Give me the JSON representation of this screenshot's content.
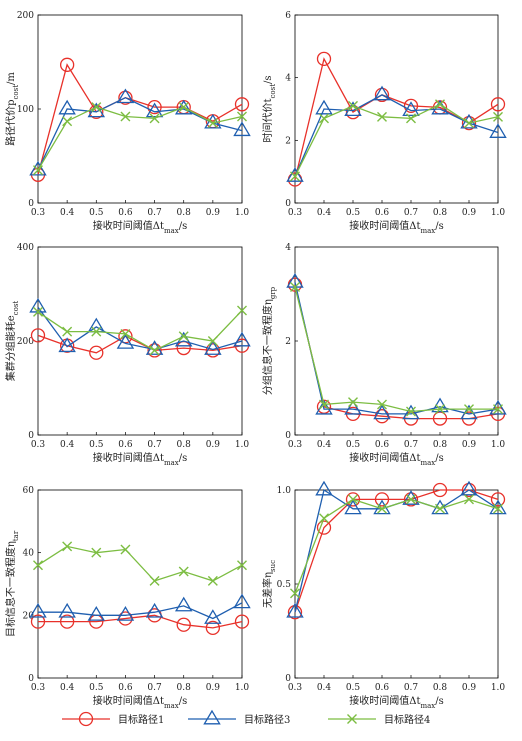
{
  "colors": {
    "s1": "#e8312a",
    "s3": "#1f5fb0",
    "s4": "#7cbd42"
  },
  "markers": {
    "s1": "circle",
    "s3": "triangle",
    "s4": "x"
  },
  "legend": [
    {
      "key": "s1",
      "label": "目标路径1"
    },
    {
      "key": "s3",
      "label": "目标路径3"
    },
    {
      "key": "s4",
      "label": "目标路径4"
    }
  ],
  "chart_data": [
    {
      "type": "line",
      "x": [
        0.3,
        0.4,
        0.5,
        0.6,
        0.7,
        0.8,
        0.9,
        1.0
      ],
      "xticks": [
        "0.3",
        "0.4",
        "0.5",
        "0.6",
        "0.7",
        "0.8",
        "0.9",
        "1.0"
      ],
      "ylim": [
        0,
        200
      ],
      "yticks": [
        "0",
        "100",
        "200"
      ],
      "ytick_vals": [
        0,
        100,
        200
      ],
      "xlabel": "接收时间阈值Δt_max/s",
      "ylabel": "路径代价p_cost/m",
      "series": [
        {
          "key": "s1",
          "name": "目标路径1",
          "values": [
            30,
            147,
            97,
            112,
            102,
            102,
            87,
            105
          ]
        },
        {
          "key": "s3",
          "name": "目标路径3",
          "values": [
            35,
            100,
            97,
            112,
            97,
            100,
            85,
            77
          ]
        },
        {
          "key": "s4",
          "name": "目标路径4",
          "values": [
            35,
            87,
            102,
            92,
            90,
            102,
            85,
            92
          ]
        }
      ]
    },
    {
      "type": "line",
      "x": [
        0.3,
        0.4,
        0.5,
        0.6,
        0.7,
        0.8,
        0.9,
        1.0
      ],
      "xticks": [
        "0.3",
        "0.4",
        "0.5",
        "0.6",
        "0.7",
        "0.8",
        "0.9",
        "1.0"
      ],
      "ylim": [
        0,
        6
      ],
      "yticks": [
        "0",
        "2",
        "4",
        "6"
      ],
      "ytick_vals": [
        0,
        2,
        4,
        6
      ],
      "xlabel": "接收时间阈值Δt_max/s",
      "ylabel": "时间代价t_cost/s",
      "series": [
        {
          "key": "s1",
          "name": "目标路径1",
          "values": [
            0.75,
            4.6,
            2.9,
            3.45,
            3.1,
            3.05,
            2.55,
            3.15
          ]
        },
        {
          "key": "s3",
          "name": "目标路径3",
          "values": [
            0.85,
            3.0,
            2.95,
            3.45,
            2.95,
            3.0,
            2.55,
            2.25
          ]
        },
        {
          "key": "s4",
          "name": "目标路径4",
          "values": [
            0.85,
            2.7,
            3.1,
            2.75,
            2.7,
            3.15,
            2.55,
            2.75
          ]
        }
      ]
    },
    {
      "type": "line",
      "x": [
        0.3,
        0.4,
        0.5,
        0.6,
        0.7,
        0.8,
        0.9,
        1.0
      ],
      "xticks": [
        "0.3",
        "0.4",
        "0.5",
        "0.6",
        "0.7",
        "0.8",
        "0.9",
        "1.0"
      ],
      "ylim": [
        0,
        400
      ],
      "yticks": [
        "0",
        "200",
        "400"
      ],
      "ytick_vals": [
        0,
        200,
        400
      ],
      "xlabel": "接收时间阈值Δt_max/s",
      "ylabel": "集群分组能耗e_cost",
      "series": [
        {
          "key": "s1",
          "name": "目标路径1",
          "values": [
            212,
            190,
            175,
            210,
            180,
            185,
            180,
            190
          ]
        },
        {
          "key": "s3",
          "name": "目标路径3",
          "values": [
            272,
            188,
            230,
            195,
            182,
            200,
            182,
            200
          ]
        },
        {
          "key": "s4",
          "name": "目标路径4",
          "values": [
            262,
            220,
            220,
            215,
            180,
            210,
            200,
            265
          ]
        }
      ]
    },
    {
      "type": "line",
      "x": [
        0.3,
        0.4,
        0.5,
        0.6,
        0.7,
        0.8,
        0.9,
        1.0
      ],
      "xticks": [
        "0.3",
        "0.4",
        "0.5",
        "0.6",
        "0.7",
        "0.8",
        "0.9",
        "1.0"
      ],
      "ylim": [
        0,
        4
      ],
      "yticks": [
        "0",
        "2",
        "4"
      ],
      "ytick_vals": [
        0,
        2,
        4
      ],
      "xlabel": "接收时间阈值Δt_max/s",
      "ylabel": "分组信息不一致程度η_grp",
      "series": [
        {
          "key": "s1",
          "name": "目标路径1",
          "values": [
            3.2,
            0.6,
            0.45,
            0.4,
            0.35,
            0.35,
            0.35,
            0.45
          ]
        },
        {
          "key": "s3",
          "name": "目标路径3",
          "values": [
            3.25,
            0.55,
            0.55,
            0.45,
            0.45,
            0.6,
            0.45,
            0.55
          ]
        },
        {
          "key": "s4",
          "name": "目标路径4",
          "values": [
            3.15,
            0.65,
            0.7,
            0.65,
            0.5,
            0.55,
            0.55,
            0.55
          ]
        }
      ]
    },
    {
      "type": "line",
      "x": [
        0.3,
        0.4,
        0.5,
        0.6,
        0.7,
        0.8,
        0.9,
        1.0
      ],
      "xticks": [
        "0.3",
        "0.4",
        "0.5",
        "0.6",
        "0.7",
        "0.8",
        "0.9",
        "1.0"
      ],
      "ylim": [
        0,
        60
      ],
      "yticks": [
        "0",
        "20",
        "40",
        "60"
      ],
      "ytick_vals": [
        0,
        20,
        40,
        60
      ],
      "xlabel": "接收时间阈值Δt_max/s",
      "ylabel": "目标信息不一致程度η_tar",
      "series": [
        {
          "key": "s1",
          "name": "目标路径1",
          "values": [
            18,
            18,
            18,
            19,
            20,
            17,
            16,
            18
          ]
        },
        {
          "key": "s3",
          "name": "目标路径3",
          "values": [
            21,
            21,
            20,
            20,
            21,
            23,
            19,
            24
          ]
        },
        {
          "key": "s4",
          "name": "目标路径4",
          "values": [
            36,
            42,
            40,
            41,
            31,
            34,
            31,
            36
          ]
        }
      ]
    },
    {
      "type": "line",
      "x": [
        0.3,
        0.4,
        0.5,
        0.6,
        0.7,
        0.8,
        0.9,
        1.0
      ],
      "xticks": [
        "0.3",
        "0.4",
        "0.5",
        "0.6",
        "0.7",
        "0.8",
        "0.9",
        "1.0"
      ],
      "ylim": [
        0,
        1.0
      ],
      "yticks": [
        "0",
        "0.5",
        "1.0"
      ],
      "ytick_vals": [
        0,
        0.5,
        1.0
      ],
      "xlabel": "接收时间阈值Δt_max/s",
      "ylabel": "无差率η_suc",
      "series": [
        {
          "key": "s1",
          "name": "目标路径1",
          "values": [
            0.35,
            0.8,
            0.95,
            0.95,
            0.95,
            1.0,
            1.0,
            0.95
          ]
        },
        {
          "key": "s3",
          "name": "目标路径3",
          "values": [
            0.35,
            1.0,
            0.9,
            0.9,
            0.95,
            0.9,
            1.0,
            0.9
          ]
        },
        {
          "key": "s4",
          "name": "目标路径4",
          "values": [
            0.45,
            0.85,
            0.95,
            0.9,
            0.95,
            0.9,
            0.95,
            0.9
          ]
        }
      ]
    }
  ]
}
